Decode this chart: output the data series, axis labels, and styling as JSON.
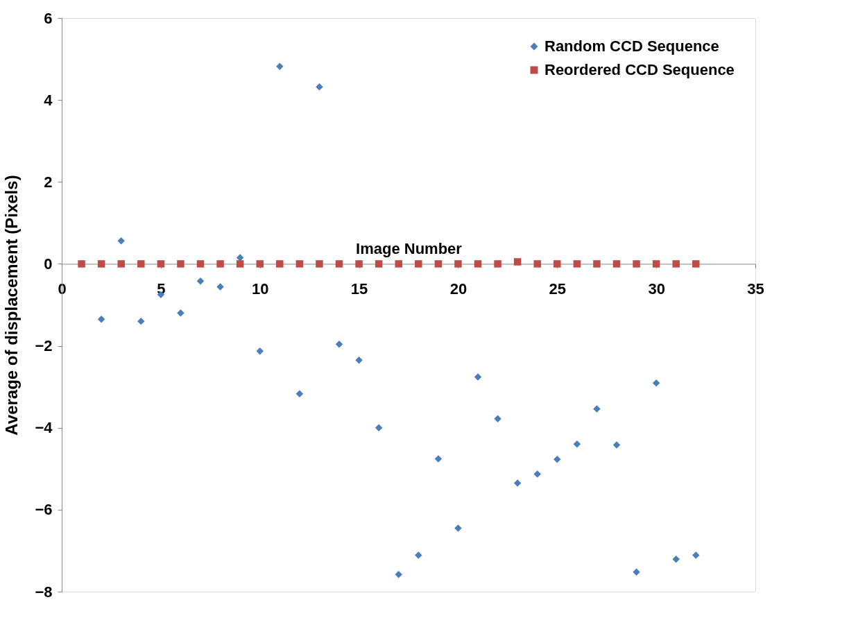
{
  "chart_data": {
    "type": "scatter",
    "xlabel": "Image Number",
    "ylabel": "Average of displacement (Pixels)",
    "xlim": [
      0,
      35
    ],
    "xticks": [
      0,
      5,
      10,
      15,
      20,
      25,
      30,
      35
    ],
    "ylim": [
      -8,
      6
    ],
    "yticks": [
      -8,
      -6,
      -4,
      -2,
      0,
      2,
      4,
      6
    ],
    "grid": false,
    "legend": "top right",
    "series": [
      {
        "name": "Random CCD Sequence",
        "color": "#4a7ebb",
        "marker": "diamond",
        "x": [
          2,
          3,
          4,
          5,
          6,
          7,
          8,
          9,
          10,
          11,
          12,
          13,
          14,
          15,
          16,
          17,
          18,
          19,
          20,
          21,
          22,
          23,
          24,
          25,
          26,
          27,
          28,
          29,
          30,
          31,
          32
        ],
        "values": [
          -1.35,
          0.56,
          -1.4,
          -0.75,
          -1.2,
          -0.42,
          -0.56,
          0.15,
          -2.13,
          4.82,
          -3.17,
          4.32,
          -1.96,
          -2.35,
          -4.0,
          -7.58,
          -7.11,
          -4.76,
          -6.45,
          -2.76,
          -3.78,
          -5.35,
          -5.13,
          -4.77,
          -4.4,
          -3.54,
          -4.42,
          -7.52,
          -2.91,
          -7.21,
          -7.11
        ]
      },
      {
        "name": "Reordered CCD Sequence",
        "color": "#be4b48",
        "marker": "square",
        "x": [
          1,
          2,
          3,
          4,
          5,
          6,
          7,
          8,
          9,
          10,
          11,
          12,
          13,
          14,
          15,
          16,
          17,
          18,
          19,
          20,
          21,
          22,
          23,
          24,
          25,
          26,
          27,
          28,
          29,
          30,
          31,
          32
        ],
        "values": [
          0,
          0,
          0,
          0,
          0,
          0,
          0,
          0,
          0,
          0,
          0,
          0,
          0,
          0,
          0,
          0,
          0,
          0,
          0,
          0,
          0,
          0,
          0.05,
          0,
          0,
          0,
          0,
          0,
          0,
          0,
          0,
          0
        ]
      }
    ]
  }
}
